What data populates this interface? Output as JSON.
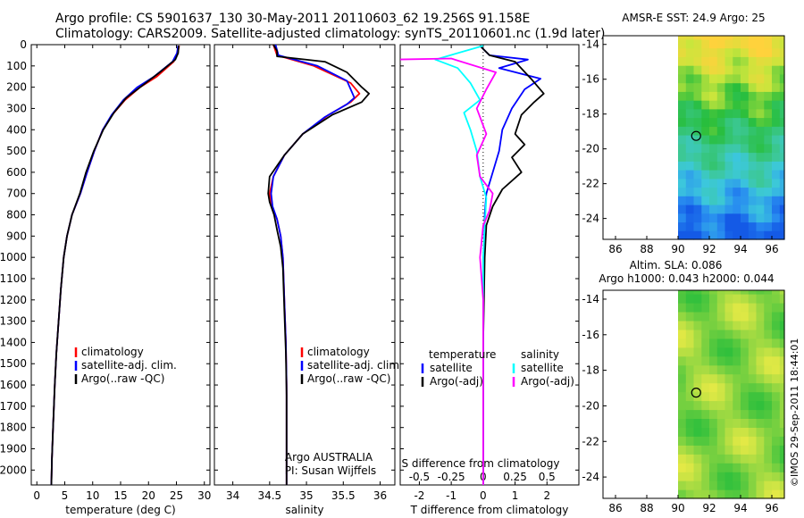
{
  "header": {
    "line1": "Argo profile: CS 5901637_130 30-May-2011 20110603_62 19.256S 91.158E",
    "line2": "Climatology: CARS2009. Satellite-adjusted climatology: synTS_20110601.nc (1.9d later)"
  },
  "colors": {
    "climatology": "#ff0000",
    "satellite": "#0000ff",
    "argo": "#000000",
    "sat_salinity": "#00ffff",
    "argo_salinity": "#ff00ff"
  },
  "chart_data": [
    {
      "type": "line",
      "title": "",
      "xlabel": "temperature (deg C)",
      "ylabel": "",
      "xlim": [
        -1,
        31
      ],
      "ylim": [
        2070,
        0
      ],
      "xticks": [
        "0",
        "5",
        "10",
        "15",
        "20",
        "25",
        "30"
      ],
      "yticks": [
        "0",
        "100",
        "200",
        "300",
        "400",
        "500",
        "600",
        "700",
        "800",
        "900",
        "1000",
        "1100",
        "1200",
        "1300",
        "1400",
        "1500",
        "1600",
        "1700",
        "1800",
        "1900",
        "2000"
      ],
      "legend": [
        "climatology",
        "satellite-adj. clim.",
        "Argo(..raw -QC)"
      ],
      "series": [
        {
          "name": "climatology",
          "points": [
            [
              25.5,
              5
            ],
            [
              25.2,
              40
            ],
            [
              24.5,
              80
            ],
            [
              21.5,
              150
            ],
            [
              18.5,
              200
            ],
            [
              15.8,
              260
            ],
            [
              13.5,
              330
            ],
            [
              11.8,
              400
            ],
            [
              10.3,
              500
            ],
            [
              9.0,
              600
            ],
            [
              7.8,
              700
            ],
            [
              6.3,
              800
            ],
            [
              5.4,
              900
            ],
            [
              4.8,
              1000
            ],
            [
              4.3,
              1150
            ],
            [
              3.9,
              1300
            ],
            [
              3.5,
              1450
            ],
            [
              3.2,
              1600
            ],
            [
              2.9,
              1800
            ],
            [
              2.7,
              1950
            ],
            [
              2.6,
              2070
            ]
          ]
        },
        {
          "name": "satellite-adj. clim.",
          "points": [
            [
              25.3,
              5
            ],
            [
              25.1,
              40
            ],
            [
              24.3,
              80
            ],
            [
              21.0,
              150
            ],
            [
              18.0,
              200
            ],
            [
              15.5,
              260
            ],
            [
              13.4,
              330
            ],
            [
              11.8,
              400
            ],
            [
              10.3,
              500
            ],
            [
              9.0,
              600
            ],
            [
              7.8,
              700
            ],
            [
              6.3,
              800
            ],
            [
              5.4,
              900
            ],
            [
              4.8,
              1000
            ],
            [
              4.3,
              1150
            ],
            [
              3.9,
              1300
            ],
            [
              3.5,
              1450
            ],
            [
              3.2,
              1600
            ],
            [
              2.9,
              1800
            ],
            [
              2.7,
              1950
            ],
            [
              2.6,
              2070
            ]
          ]
        },
        {
          "name": "Argo(..raw -QC)",
          "points": [
            [
              25.4,
              5
            ],
            [
              25.3,
              40
            ],
            [
              24.8,
              70
            ],
            [
              22.0,
              130
            ],
            [
              19.0,
              190
            ],
            [
              16.0,
              250
            ],
            [
              13.8,
              320
            ],
            [
              11.9,
              400
            ],
            [
              10.2,
              500
            ],
            [
              8.8,
              600
            ],
            [
              7.7,
              700
            ],
            [
              6.3,
              800
            ],
            [
              5.4,
              900
            ],
            [
              4.8,
              1000
            ],
            [
              4.3,
              1150
            ],
            [
              3.9,
              1300
            ],
            [
              3.5,
              1450
            ],
            [
              3.2,
              1600
            ],
            [
              2.9,
              1800
            ],
            [
              2.7,
              1950
            ],
            [
              2.6,
              2070
            ]
          ]
        }
      ]
    },
    {
      "type": "line",
      "xlabel": "salinity",
      "xlim": [
        33.75,
        36.2
      ],
      "ylim": [
        2070,
        0
      ],
      "xticks": [
        "34",
        "34.5",
        "35",
        "35.5",
        "36"
      ],
      "legend": [
        "climatology",
        "satellite-adj. clim.",
        "Argo(..raw -QC)"
      ],
      "annotation": [
        "Argo AUSTRALIA",
        "PI: Susan Wijffels"
      ],
      "series": [
        {
          "name": "climatology",
          "points": [
            [
              34.55,
              0
            ],
            [
              34.6,
              50
            ],
            [
              35.1,
              100
            ],
            [
              35.6,
              180
            ],
            [
              35.72,
              230
            ],
            [
              35.6,
              270
            ],
            [
              35.3,
              330
            ],
            [
              34.95,
              420
            ],
            [
              34.7,
              520
            ],
            [
              34.55,
              620
            ],
            [
              34.5,
              700
            ],
            [
              34.53,
              760
            ],
            [
              34.6,
              820
            ],
            [
              34.65,
              900
            ],
            [
              34.68,
              1000
            ],
            [
              34.7,
              1200
            ],
            [
              34.72,
              1400
            ],
            [
              34.73,
              1600
            ],
            [
              34.73,
              2070
            ]
          ]
        },
        {
          "name": "satellite-adj. clim.",
          "points": [
            [
              34.58,
              0
            ],
            [
              34.62,
              50
            ],
            [
              35.15,
              100
            ],
            [
              35.55,
              170
            ],
            [
              35.65,
              250
            ],
            [
              35.55,
              280
            ],
            [
              35.25,
              340
            ],
            [
              34.95,
              420
            ],
            [
              34.7,
              520
            ],
            [
              34.55,
              620
            ],
            [
              34.52,
              700
            ],
            [
              34.54,
              760
            ],
            [
              34.6,
              820
            ],
            [
              34.65,
              900
            ],
            [
              34.68,
              1000
            ],
            [
              34.7,
              1200
            ],
            [
              34.72,
              1400
            ],
            [
              34.73,
              1600
            ],
            [
              34.73,
              2070
            ]
          ]
        },
        {
          "name": "Argo(..raw -QC)",
          "points": [
            [
              34.55,
              0
            ],
            [
              34.6,
              30
            ],
            [
              34.6,
              55
            ],
            [
              35.25,
              80
            ],
            [
              35.55,
              130
            ],
            [
              35.75,
              200
            ],
            [
              35.85,
              230
            ],
            [
              35.75,
              270
            ],
            [
              35.35,
              330
            ],
            [
              34.95,
              420
            ],
            [
              34.7,
              520
            ],
            [
              34.5,
              620
            ],
            [
              34.48,
              700
            ],
            [
              34.5,
              740
            ],
            [
              34.56,
              800
            ],
            [
              34.6,
              870
            ],
            [
              34.65,
              950
            ],
            [
              34.68,
              1050
            ],
            [
              34.7,
              1250
            ],
            [
              34.72,
              1450
            ],
            [
              34.73,
              1650
            ],
            [
              34.73,
              2070
            ]
          ]
        }
      ]
    },
    {
      "type": "line",
      "xlabel": "T difference from climatology",
      "xlabel_top": "S difference from climatology",
      "xlim": [
        -2.6,
        3.0
      ],
      "ylim": [
        2070,
        0
      ],
      "xticks": [
        "-2",
        "-1",
        "0",
        "1",
        "2"
      ],
      "xticks_top": [
        "-0.5",
        "-0.25",
        "0",
        "0.25",
        "0.5"
      ],
      "legend_temperature": [
        "temperature",
        "satellite",
        "Argo(-adj)"
      ],
      "legend_salinity": [
        "salinity",
        "satellite",
        "Argo(-adj)"
      ],
      "series": [
        {
          "name": "temperature satellite",
          "points": [
            [
              -0.1,
              5
            ],
            [
              0.2,
              50
            ],
            [
              1.4,
              70
            ],
            [
              0.5,
              110
            ],
            [
              1.8,
              160
            ],
            [
              1.3,
              210
            ],
            [
              0.9,
              300
            ],
            [
              0.6,
              400
            ],
            [
              0.5,
              500
            ],
            [
              0.3,
              600
            ],
            [
              0.1,
              700
            ],
            [
              0.05,
              800
            ],
            [
              0.02,
              1000
            ],
            [
              0.0,
              1400
            ],
            [
              0.0,
              2070
            ]
          ]
        },
        {
          "name": "temperature Argo(-adj)",
          "points": [
            [
              -0.1,
              5
            ],
            [
              0.2,
              50
            ],
            [
              1.0,
              80
            ],
            [
              1.5,
              160
            ],
            [
              1.9,
              230
            ],
            [
              1.6,
              270
            ],
            [
              1.2,
              330
            ],
            [
              1.0,
              420
            ],
            [
              1.3,
              470
            ],
            [
              0.9,
              530
            ],
            [
              1.2,
              600
            ],
            [
              0.6,
              680
            ],
            [
              0.3,
              760
            ],
            [
              0.1,
              850
            ],
            [
              0.05,
              1000
            ],
            [
              0.0,
              1400
            ],
            [
              0.0,
              2070
            ]
          ]
        },
        {
          "name": "salinity satellite",
          "points": [
            [
              0.0,
              5
            ],
            [
              -1.5,
              70
            ],
            [
              -0.8,
              110
            ],
            [
              -0.4,
              180
            ],
            [
              -0.1,
              260
            ],
            [
              -0.6,
              320
            ],
            [
              -0.4,
              400
            ],
            [
              -0.2,
              500
            ],
            [
              -0.1,
              620
            ],
            [
              0.1,
              720
            ],
            [
              0.05,
              850
            ],
            [
              0.0,
              1000
            ],
            [
              0.0,
              2070
            ]
          ]
        },
        {
          "name": "salinity Argo(-adj)",
          "points": [
            [
              -2.8,
              70
            ],
            [
              -1.0,
              65
            ],
            [
              0.4,
              130
            ],
            [
              0.1,
              210
            ],
            [
              -0.2,
              300
            ],
            [
              0.1,
              420
            ],
            [
              -0.2,
              520
            ],
            [
              -0.1,
              620
            ],
            [
              0.3,
              700
            ],
            [
              0.2,
              780
            ],
            [
              0.0,
              850
            ],
            [
              -0.1,
              1000
            ],
            [
              0.0,
              1200
            ],
            [
              0.0,
              2070
            ]
          ]
        }
      ]
    },
    {
      "type": "heatmap",
      "title": "AMSR-E SST: 24.9 Argo: 25",
      "xlim": [
        85.2,
        96.8
      ],
      "ylim": [
        -25.2,
        -13.5
      ],
      "xticks": [
        "86",
        "88",
        "90",
        "92",
        "94",
        "96"
      ],
      "yticks": [
        "-14",
        "-16",
        "-18",
        "-20",
        "-22",
        "-24"
      ],
      "marker": {
        "lon": 91.158,
        "lat": -19.256
      }
    },
    {
      "type": "heatmap",
      "title_line1": "Altim. SLA: 0.086",
      "title_line2": "Argo h1000: 0.043 h2000: 0.044",
      "xlim": [
        85.2,
        96.8
      ],
      "ylim": [
        -25.2,
        -13.5
      ],
      "xticks": [
        "86",
        "88",
        "90",
        "92",
        "94",
        "96"
      ],
      "yticks": [
        "-14",
        "-16",
        "-18",
        "-20",
        "-22",
        "-24"
      ],
      "marker": {
        "lon": 91.158,
        "lat": -19.256
      }
    }
  ],
  "side_stamp": "©IMOS 29-Sep-2011 18:44:01"
}
